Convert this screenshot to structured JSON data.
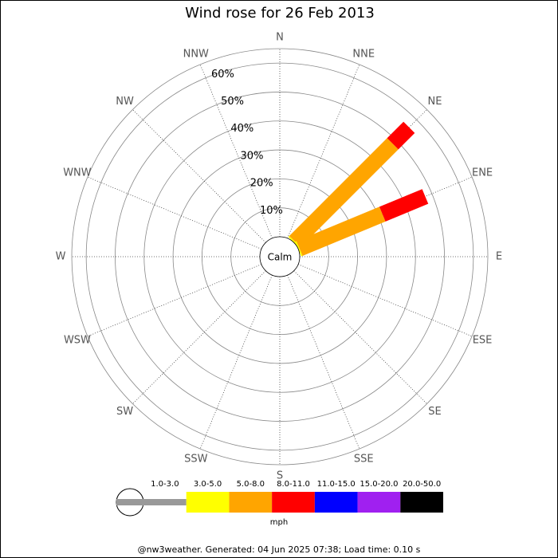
{
  "chart_data": {
    "type": "windrose",
    "title": "Wind rose for 26 Feb 2013",
    "categories": [
      "N",
      "NNE",
      "NE",
      "ENE",
      "E",
      "ESE",
      "SE",
      "SSE",
      "S",
      "SSW",
      "SW",
      "WSW",
      "W",
      "WNW",
      "NW",
      "NNW"
    ],
    "series": [
      {
        "name": "1.0-3.0",
        "color": "#999999",
        "values": [
          0,
          0,
          0,
          0,
          0,
          0,
          0,
          0,
          0,
          0,
          0,
          0,
          0,
          0,
          0,
          0
        ]
      },
      {
        "name": "3.0-5.0",
        "color": "#ffff00",
        "values": [
          0,
          0,
          0.5,
          0.5,
          0,
          0,
          0,
          0,
          0,
          0,
          0,
          0,
          0,
          0,
          0,
          0
        ]
      },
      {
        "name": "5.0-8.0",
        "color": "#ffa500",
        "values": [
          0,
          0,
          47.8,
          31,
          0,
          0,
          0,
          0,
          0,
          0,
          0,
          0,
          0,
          0,
          0,
          0
        ]
      },
      {
        "name": "8.0-11.0",
        "color": "#ff0000",
        "values": [
          0,
          0,
          8,
          16,
          0,
          0,
          0,
          0,
          0,
          0,
          0,
          0,
          0,
          0,
          0,
          0
        ]
      },
      {
        "name": "11.0-15.0",
        "color": "#0000ff",
        "values": [
          0,
          0,
          0,
          0,
          0,
          0,
          0,
          0,
          0,
          0,
          0,
          0,
          0,
          0,
          0,
          0
        ]
      },
      {
        "name": "15.0-20.0",
        "color": "#a020f0",
        "values": [
          0,
          0,
          0,
          0,
          0,
          0,
          0,
          0,
          0,
          0,
          0,
          0,
          0,
          0,
          0,
          0
        ]
      },
      {
        "name": "20.0-50.0",
        "color": "#000000",
        "values": [
          0,
          0,
          0,
          0,
          0,
          0,
          0,
          0,
          0,
          0,
          0,
          0,
          0,
          0,
          0,
          0
        ]
      }
    ],
    "rlim": [
      0,
      65
    ],
    "rticks": [
      {
        "value": 10,
        "label": "10%"
      },
      {
        "value": 20,
        "label": "20%"
      },
      {
        "value": 30,
        "label": "30%"
      },
      {
        "value": 40,
        "label": "40%"
      },
      {
        "value": 50,
        "label": "50%"
      },
      {
        "value": 60,
        "label": "60%"
      }
    ],
    "calm_label": "Calm",
    "legend_unit": "mph",
    "footer": "@nw3weather. Generated: 04 Jun 2025 07:38; Load time: 0.10 s"
  }
}
